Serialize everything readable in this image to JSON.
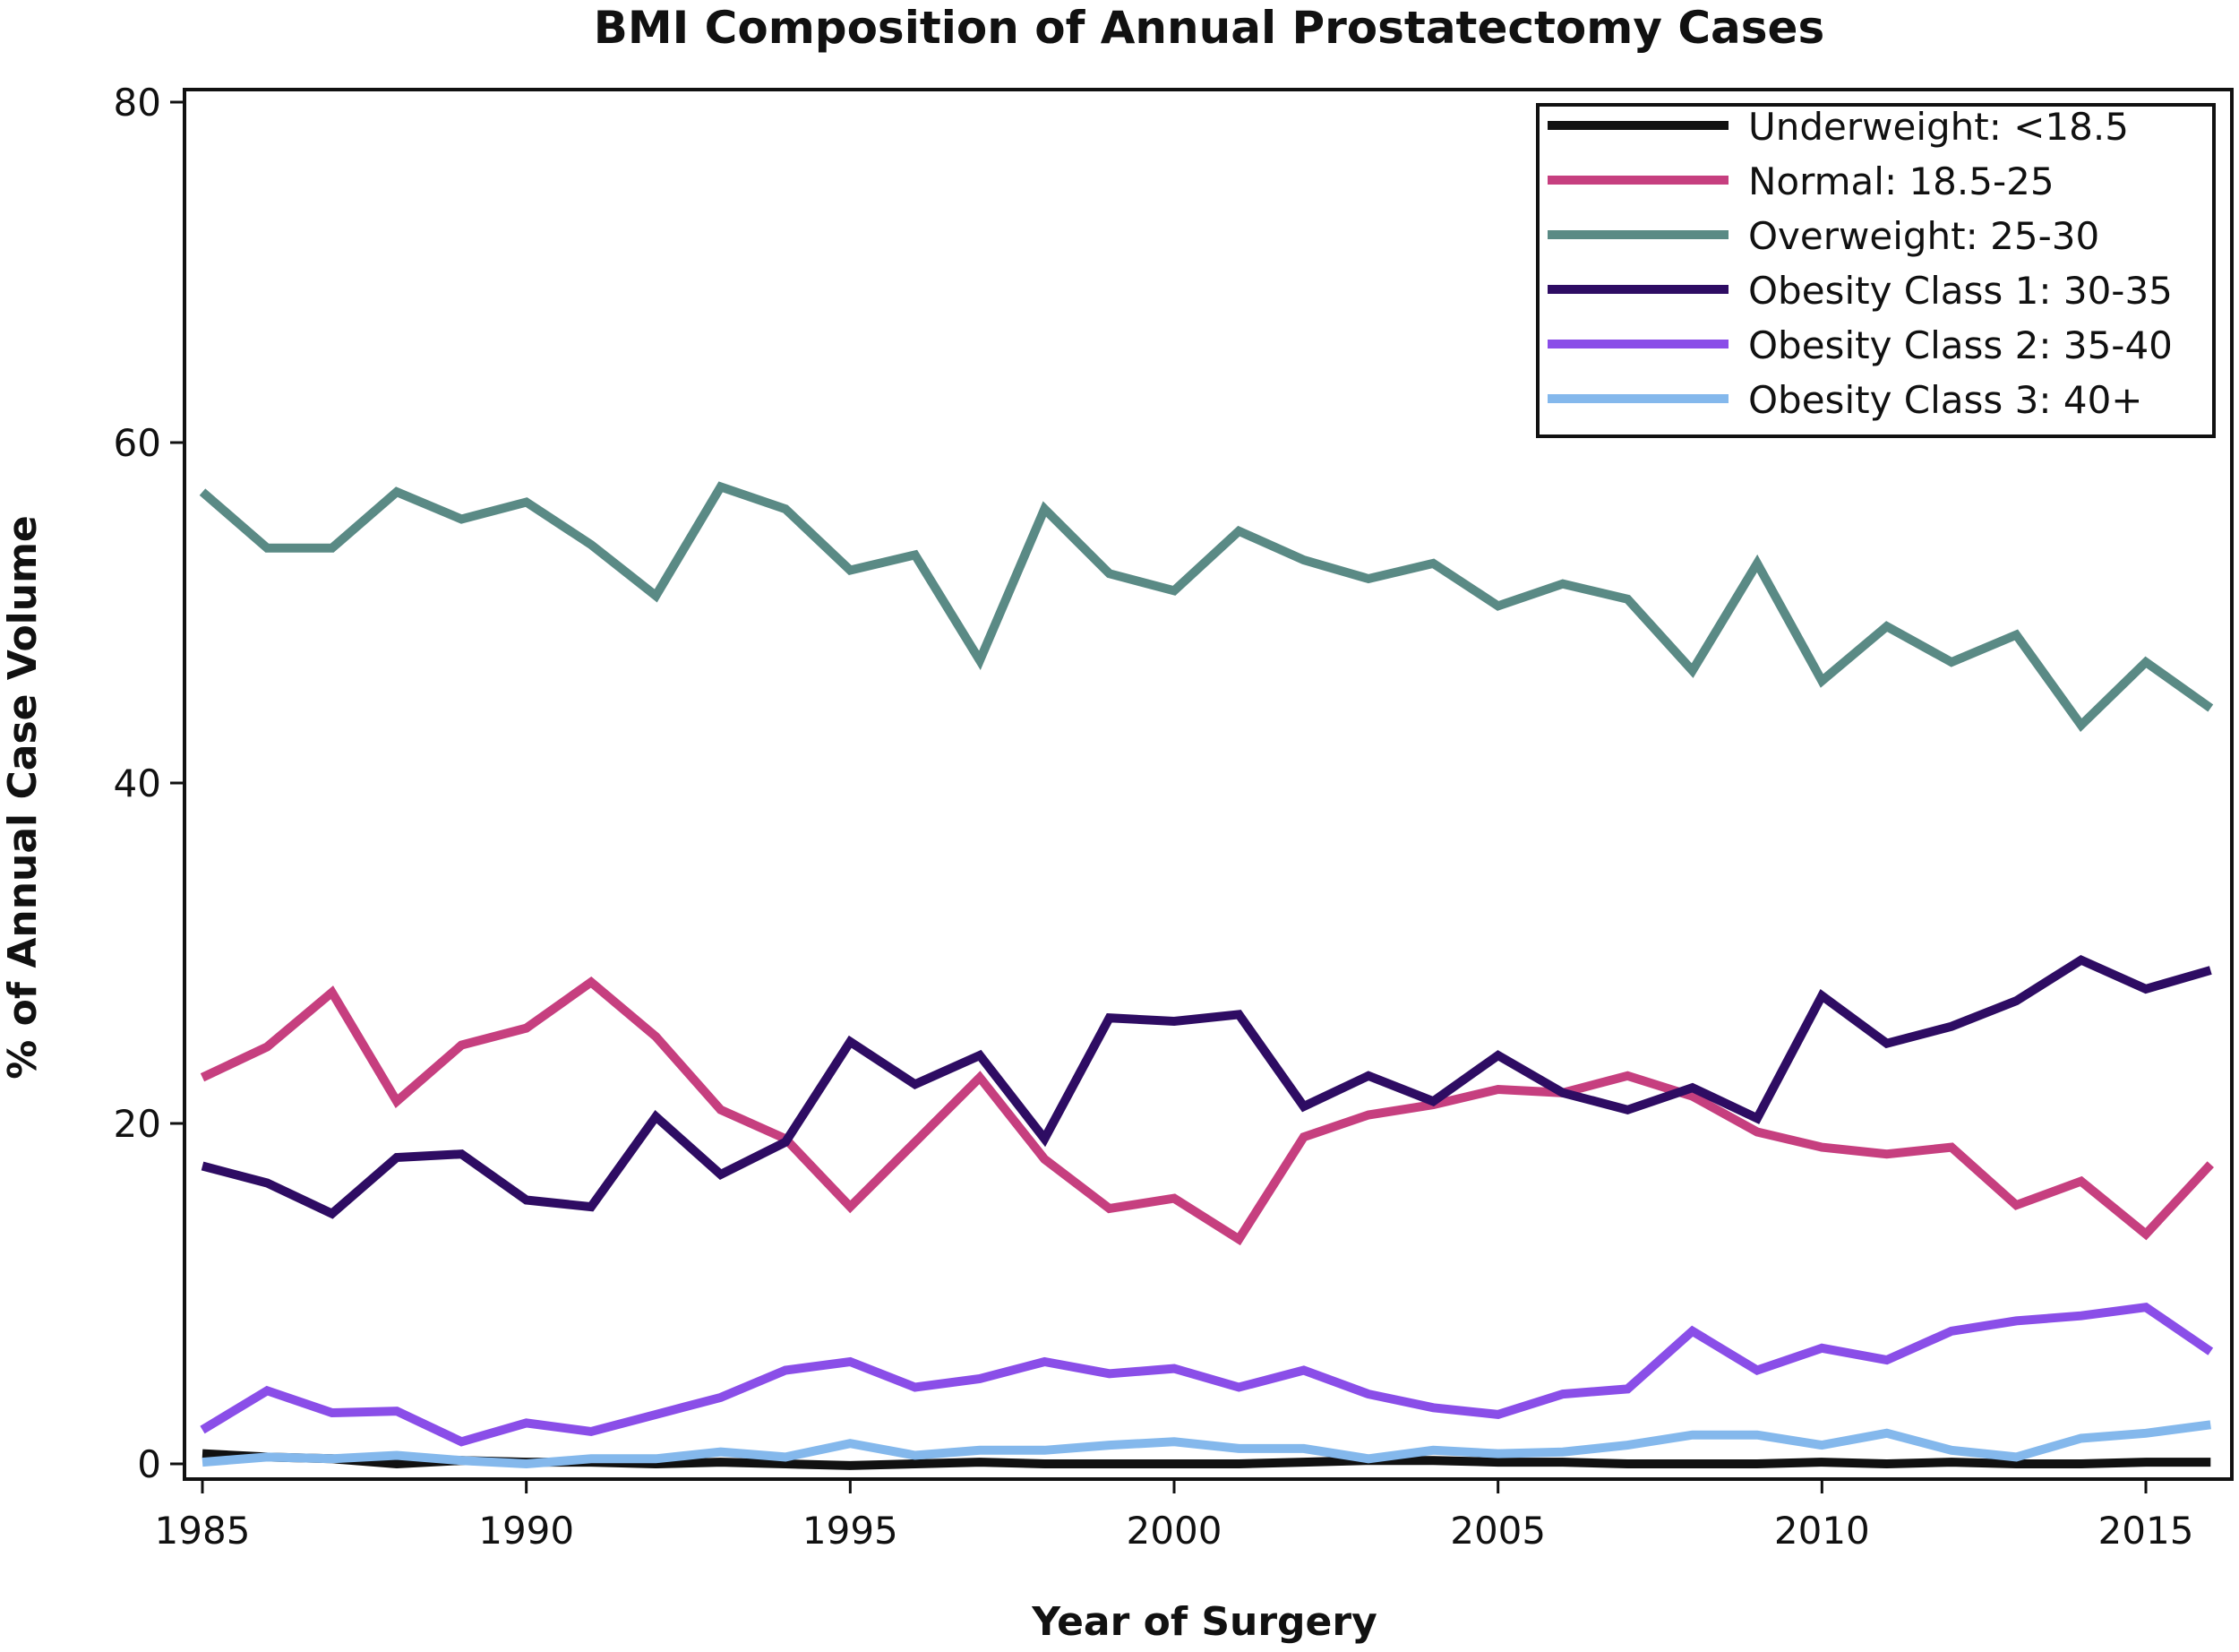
{
  "chart_data": {
    "type": "line",
    "title": "BMI Composition of Annual Prostatectomy Cases",
    "xlabel": "Year of Surgery",
    "ylabel": "% of Annual Case Volume",
    "xlim": [
      1985,
      2016.3
    ],
    "ylim": [
      -1,
      81
    ],
    "x_ticks": [
      1985,
      1990,
      1995,
      2000,
      2005,
      2010,
      2015
    ],
    "y_ticks": [
      0,
      20,
      40,
      60,
      80
    ],
    "grid": false,
    "legend_position": "top-right",
    "x": [
      1985,
      1986,
      1987,
      1988,
      1989,
      1990,
      1991,
      1992,
      1993,
      1994,
      1995,
      1996,
      1997,
      1998,
      1999,
      2000,
      2001,
      2002,
      2003,
      2004,
      2005,
      2006,
      2007,
      2008,
      2009,
      2010,
      2011,
      2012,
      2013,
      2014,
      2015,
      2016
    ],
    "series": [
      {
        "name": "Underweight: <18.5",
        "color": "#111111",
        "values": [
          0.6,
          0.4,
          0.3,
          0.0,
          0.2,
          0.1,
          0.1,
          0.0,
          0.1,
          0.0,
          -0.1,
          0.0,
          0.1,
          0.0,
          0.0,
          0.0,
          0.0,
          0.1,
          0.2,
          0.2,
          0.1,
          0.1,
          0.0,
          0.0,
          0.0,
          0.1,
          0.0,
          0.1,
          0.0,
          0.0,
          0.1,
          0.1
        ]
      },
      {
        "name": "Normal: 18.5-25",
        "color": "#C63F7F",
        "values": [
          22.7,
          24.5,
          27.7,
          21.3,
          24.6,
          25.6,
          28.3,
          25.1,
          20.8,
          19.1,
          15.1,
          18.9,
          22.7,
          17.9,
          15.0,
          15.6,
          13.2,
          19.2,
          20.5,
          21.1,
          22.0,
          21.8,
          22.8,
          21.6,
          19.5,
          18.6,
          18.2,
          18.6,
          15.2,
          16.6,
          13.5,
          17.6
        ]
      },
      {
        "name": "Overweight: 25-30",
        "color": "#5A8A85",
        "values": [
          57.1,
          53.8,
          53.8,
          57.1,
          55.5,
          56.5,
          54.0,
          51.0,
          57.4,
          56.1,
          52.5,
          53.4,
          47.2,
          56.1,
          52.3,
          51.3,
          54.8,
          53.1,
          52.0,
          52.9,
          50.4,
          51.7,
          50.8,
          46.6,
          52.9,
          46.0,
          49.2,
          47.1,
          48.7,
          43.4,
          47.1,
          44.4
        ]
      },
      {
        "name": "Obesity Class 1: 30-35",
        "color": "#2E0C63",
        "values": [
          17.5,
          16.5,
          14.7,
          18.0,
          18.2,
          15.5,
          15.1,
          20.4,
          17.0,
          18.9,
          24.8,
          22.3,
          24.0,
          19.1,
          26.2,
          26.0,
          26.4,
          21.0,
          22.8,
          21.3,
          24.0,
          21.8,
          20.8,
          22.1,
          20.3,
          27.5,
          24.7,
          25.7,
          27.2,
          29.6,
          27.9,
          29.0
        ]
      },
      {
        "name": "Obesity Class 2: 35-40",
        "color": "#8A4EE8",
        "values": [
          2.0,
          4.3,
          3.0,
          3.1,
          1.3,
          2.4,
          1.9,
          2.9,
          3.9,
          5.5,
          6.0,
          4.5,
          5.0,
          6.0,
          5.3,
          5.6,
          4.5,
          5.5,
          4.1,
          3.3,
          2.9,
          4.1,
          4.4,
          7.8,
          5.5,
          6.8,
          6.1,
          7.8,
          8.4,
          8.7,
          9.2,
          6.6
        ]
      },
      {
        "name": "Obesity Class 3: 40+",
        "color": "#84B8EC",
        "values": [
          0.1,
          0.4,
          0.3,
          0.5,
          0.2,
          0.0,
          0.3,
          0.3,
          0.7,
          0.4,
          1.2,
          0.5,
          0.8,
          0.8,
          1.1,
          1.3,
          0.9,
          0.9,
          0.3,
          0.8,
          0.6,
          0.7,
          1.1,
          1.7,
          1.7,
          1.1,
          1.8,
          0.8,
          0.4,
          1.5,
          1.8,
          2.3
        ]
      }
    ]
  }
}
